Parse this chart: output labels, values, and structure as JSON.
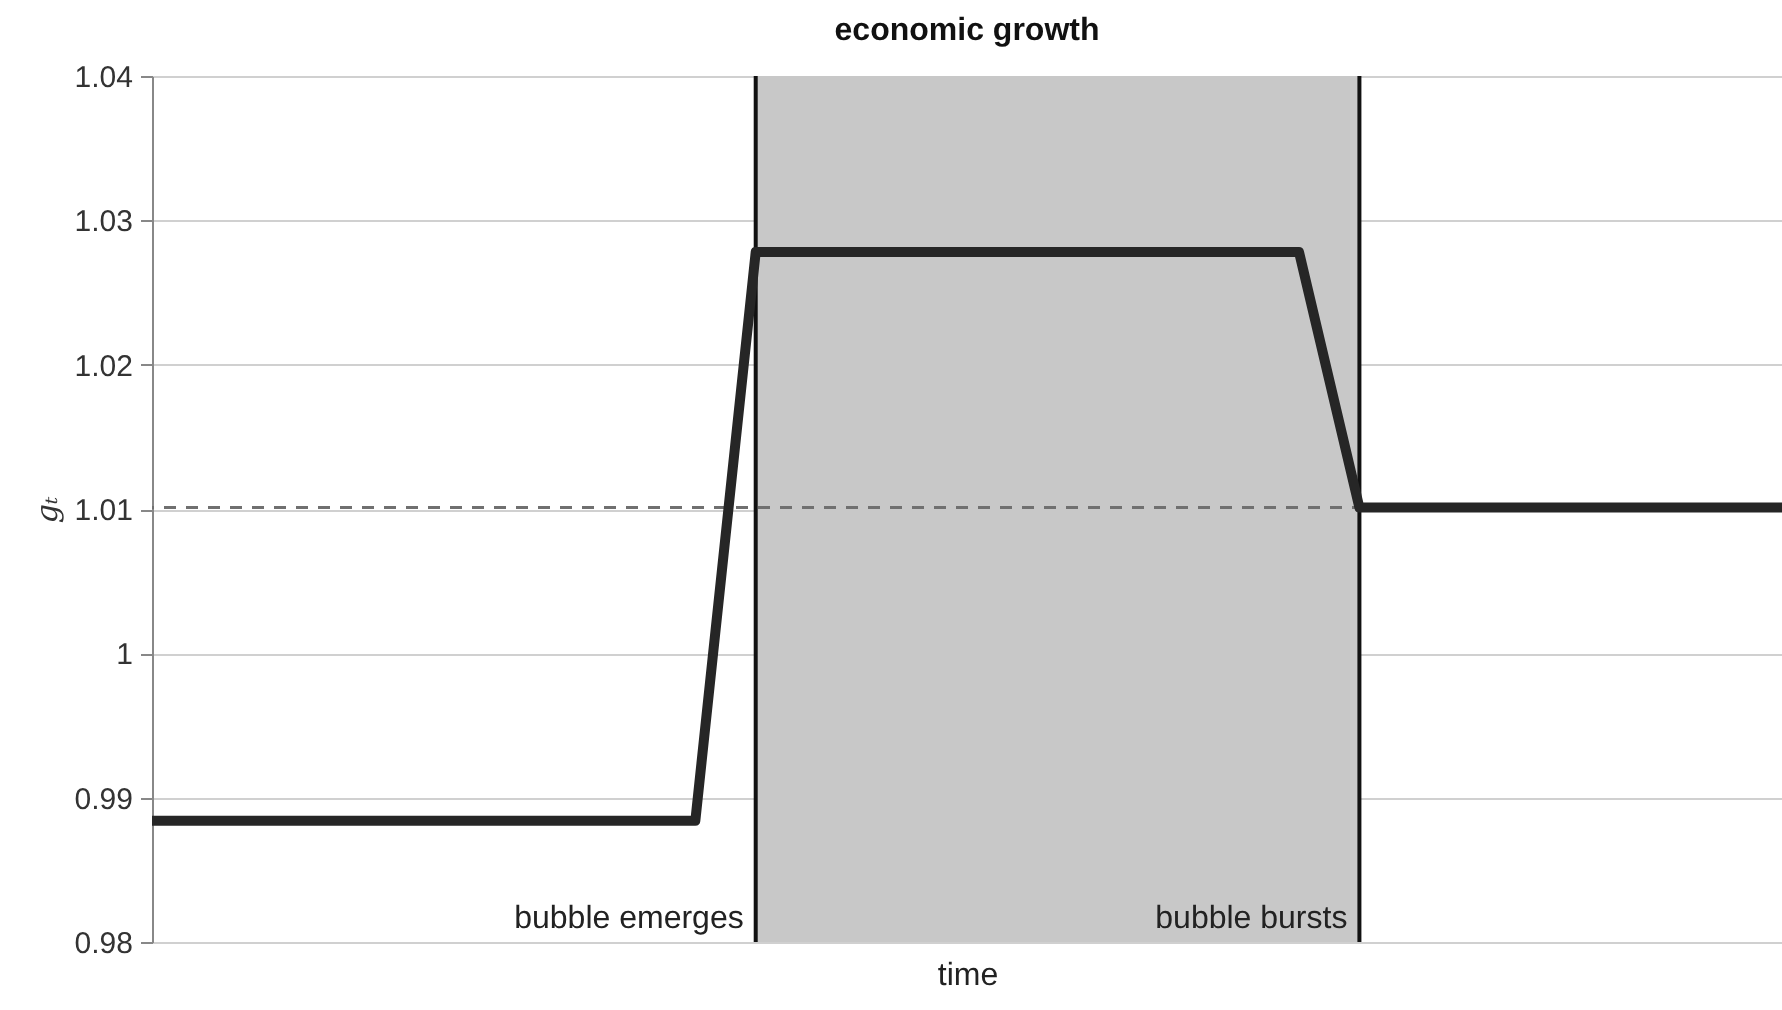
{
  "chart_data": {
    "type": "line",
    "title": "economic growth",
    "xlabel": "time",
    "ylabel": "gₜ",
    "categories": [
      null,
      null,
      null,
      null,
      null,
      null,
      null,
      null,
      null,
      null,
      null,
      null,
      null,
      null,
      null,
      null,
      null,
      null,
      null,
      null,
      null,
      null,
      null,
      null,
      null,
      null,
      null,
      null
    ],
    "series": [
      {
        "color": "#262626",
        "values": [
          0.9884,
          0.9884,
          0.9884,
          0.9884,
          0.9884,
          0.9884,
          0.9884,
          0.9884,
          0.9884,
          0.9884,
          1.0278,
          1.0278,
          1.0278,
          1.0278,
          1.0278,
          1.0278,
          1.0278,
          1.0278,
          1.0278,
          1.0278,
          1.0101,
          1.0101,
          1.0101,
          1.0101,
          1.0101,
          1.0101,
          1.0101,
          1.0101
        ]
      }
    ],
    "ylim": [
      0.98,
      1.04
    ],
    "yticks": [
      0.98,
      0.99,
      1,
      1.01,
      1.02,
      1.03,
      1.04
    ],
    "grid": "y",
    "line_style": "solid",
    "marker": "none",
    "ref_lines": [
      {
        "axis": "y",
        "value": 1.0101,
        "color": "#707070",
        "line_style": "dashed"
      }
    ],
    "annotations": [
      "bubble emerges",
      "bubble bursts"
    ]
  }
}
